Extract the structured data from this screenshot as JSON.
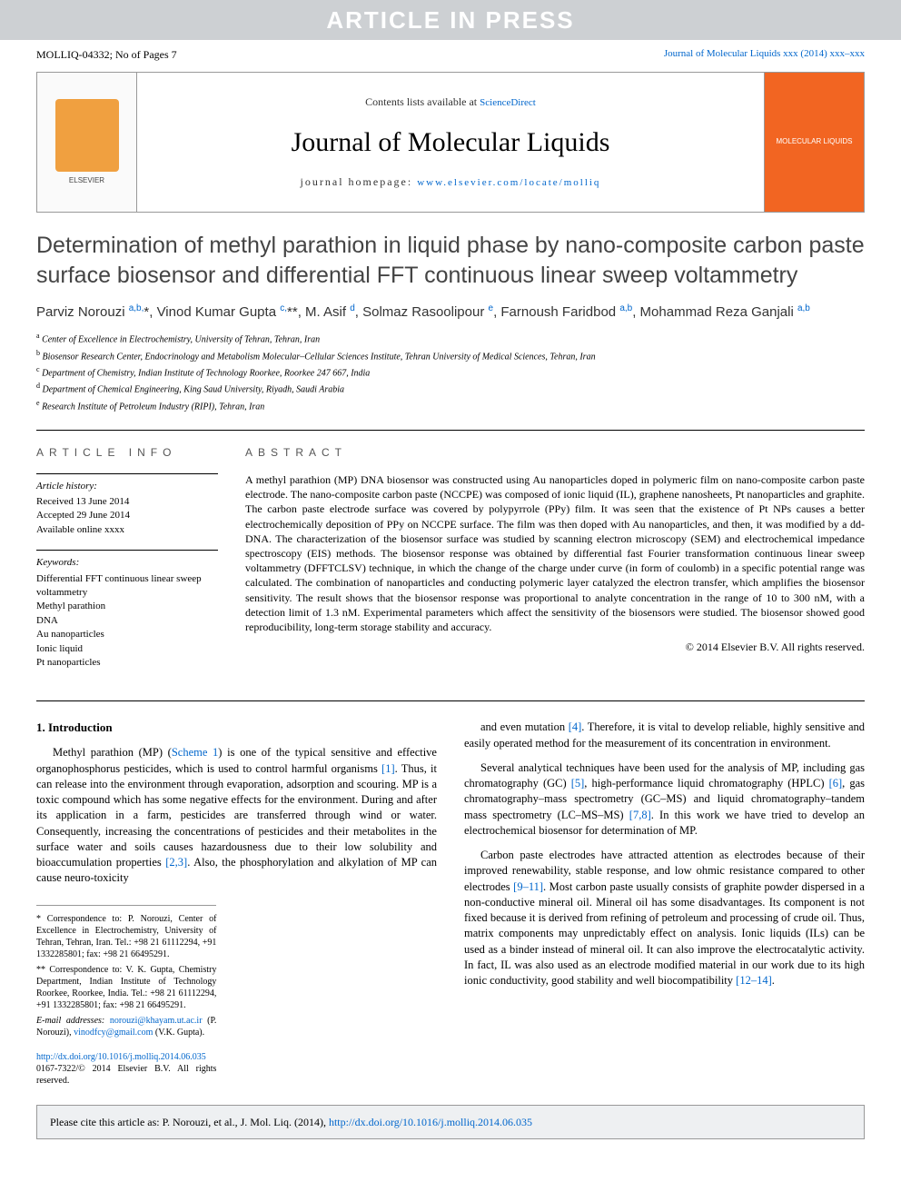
{
  "banner_aip": "ARTICLE IN PRESS",
  "header": {
    "left": "MOLLIQ-04332; No of Pages 7",
    "right": "Journal of Molecular Liquids xxx (2014) xxx–xxx"
  },
  "banner": {
    "publisher": "ELSEVIER",
    "contents_line_pre": "Contents lists available at ",
    "contents_link": "ScienceDirect",
    "journal_title": "Journal of Molecular Liquids",
    "homepage_pre": "journal homepage: ",
    "homepage_link": "www.elsevier.com/locate/molliq",
    "cover_text": "MOLECULAR LIQUIDS"
  },
  "title": "Determination of methyl parathion in liquid phase by nano-composite carbon paste surface biosensor and differential FFT continuous linear sweep voltammetry",
  "authors_html": "Parviz Norouzi <sup>a,b,</sup><span class='corr-star'>*</span>, Vinod Kumar Gupta <sup>c,</sup><span class='corr-star'>**</span>, M. Asif <sup>d</sup>, Solmaz Rasoolipour <sup>e</sup>, Farnoush Faridbod <sup>a,b</sup>, Mohammad Reza Ganjali <sup>a,b</sup>",
  "affiliations": [
    {
      "sup": "a",
      "text": "Center of Excellence in Electrochemistry, University of Tehran, Tehran, Iran"
    },
    {
      "sup": "b",
      "text": "Biosensor Research Center, Endocrinology and Metabolism Molecular–Cellular Sciences Institute, Tehran University of Medical Sciences, Tehran, Iran"
    },
    {
      "sup": "c",
      "text": "Department of Chemistry, Indian Institute of Technology Roorkee, Roorkee 247 667, India"
    },
    {
      "sup": "d",
      "text": "Department of Chemical Engineering, King Saud University, Riyadh, Saudi Arabia"
    },
    {
      "sup": "e",
      "text": "Research Institute of Petroleum Industry (RIPI), Tehran, Iran"
    }
  ],
  "info": {
    "head": "article info",
    "history_title": "Article history:",
    "history": [
      "Received 13 June 2014",
      "Accepted 29 June 2014",
      "Available online xxxx"
    ],
    "keywords_title": "Keywords:",
    "keywords": [
      "Differential FFT continuous linear sweep voltammetry",
      "Methyl parathion",
      "DNA",
      "Au nanoparticles",
      "Ionic liquid",
      "Pt nanoparticles"
    ]
  },
  "abstract": {
    "head": "abstract",
    "body": "A methyl parathion (MP) DNA biosensor was constructed using Au nanoparticles doped in polymeric film on nano-composite carbon paste electrode. The nano-composite carbon paste (NCCPE) was composed of ionic liquid (IL), graphene nanosheets, Pt nanoparticles and graphite. The carbon paste electrode surface was covered by polypyrrole (PPy) film. It was seen that the existence of Pt NPs causes a better electrochemically deposition of PPy on NCCPE surface. The film was then doped with Au nanoparticles, and then, it was modified by a dd-DNA. The characterization of the biosensor surface was studied by scanning electron microscopy (SEM) and electrochemical impedance spectroscopy (EIS) methods. The biosensor response was obtained by differential fast Fourier transformation continuous linear sweep voltammetry (DFFTCLSV) technique, in which the change of the charge under curve (in form of coulomb) in a specific potential range was calculated. The combination of nanoparticles and conducting polymeric layer catalyzed the electron transfer, which amplifies the biosensor sensitivity. The result shows that the biosensor response was proportional to analyte concentration in the range of 10 to 300 nM, with a detection limit of 1.3 nM. Experimental parameters which affect the sensitivity of the biosensors were studied. The biosensor showed good reproducibility, long-term storage stability and accuracy.",
    "copyright": "© 2014 Elsevier B.V. All rights reserved."
  },
  "section_heading": "1. Introduction",
  "para1_pre": "Methyl parathion (MP) (",
  "scheme_link": "Scheme 1",
  "para1_mid": ") is one of the typical sensitive and effective organophosphorus pesticides, which is used to control harmful organisms ",
  "ref1": "[1]",
  "para1_post": ". Thus, it can release into the environment through evaporation, adsorption and scouring. MP is a toxic compound which has some negative effects for the environment. During and after its application in a farm, pesticides are transferred through wind or water. Consequently, increasing the concentrations of pesticides and their metabolites in the surface water and soils causes hazardousness due to their low solubility and bioaccumulation properties ",
  "ref23": "[2,3]",
  "para1_end": ". Also, the phosphorylation and alkylation of MP can cause neuro-toxicity",
  "para2_pre": "and even mutation ",
  "ref4": "[4]",
  "para2_post": ". Therefore, it is vital to develop reliable, highly sensitive and easily operated method for the measurement of its concentration in environment.",
  "para3_pre": "Several analytical techniques have been used for the analysis of MP, including gas chromatography (GC) ",
  "ref5": "[5]",
  "para3_mid1": ", high-performance liquid chromatography (HPLC) ",
  "ref6": "[6]",
  "para3_mid2": ", gas chromatography–mass spectrometry (GC–MS) and liquid chromatography–tandem mass spectrometry (LC–MS–MS) ",
  "ref78": "[7,8]",
  "para3_end": ". In this work we have tried to develop an electrochemical biosensor for determination of MP.",
  "para4_pre": "Carbon paste electrodes have attracted attention as electrodes because of their improved renewability, stable response, and low ohmic resistance compared to other electrodes ",
  "ref911": "[9–11]",
  "para4_mid": ". Most carbon paste usually consists of graphite powder dispersed in a non-conductive mineral oil. Mineral oil has some disadvantages. Its component is not fixed because it is derived from refining of petroleum and processing of crude oil. Thus, matrix components may unpredictably effect on analysis. Ionic liquids (ILs) can be used as a binder instead of mineral oil. It can also improve the electrocatalytic activity. In fact, IL was also used as an electrode modified material in our work due to its high ionic conductivity, good stability and well biocompatibility ",
  "ref1214": "[12–14]",
  "para4_end": ".",
  "footnotes": {
    "corr1": "* Correspondence to: P. Norouzi, Center of Excellence in Electrochemistry, University of Tehran, Tehran, Iran. Tel.: +98 21 61112294, +91 1332285801; fax: +98 21 66495291.",
    "corr2": "** Correspondence to: V. K. Gupta, Chemistry Department, Indian Institute of Technology Roorkee, Roorkee, India. Tel.: +98 21 61112294, +91 1332285801; fax: +98 21 66495291.",
    "email_label": "E-mail addresses: ",
    "email1": "norouzi@khayam.ut.ac.ir",
    "email1_name": " (P. Norouzi), ",
    "email2": "vinodfcy@gmail.com",
    "email2_name": " (V.K. Gupta)."
  },
  "doi": {
    "link": "http://dx.doi.org/10.1016/j.molliq.2014.06.035",
    "issn": "0167-7322/© 2014 Elsevier B.V. All rights reserved."
  },
  "cite_box_pre": "Please cite this article as: P. Norouzi, et al., J. Mol. Liq. (2014), ",
  "cite_box_link": "http://dx.doi.org/10.1016/j.molliq.2014.06.035",
  "colors": {
    "link": "#0066cc",
    "aip_bg": "#cdd0d3",
    "cover_bg": "#f26522",
    "elsevier": "#f0a040",
    "cite_bg": "#eef0f2"
  }
}
